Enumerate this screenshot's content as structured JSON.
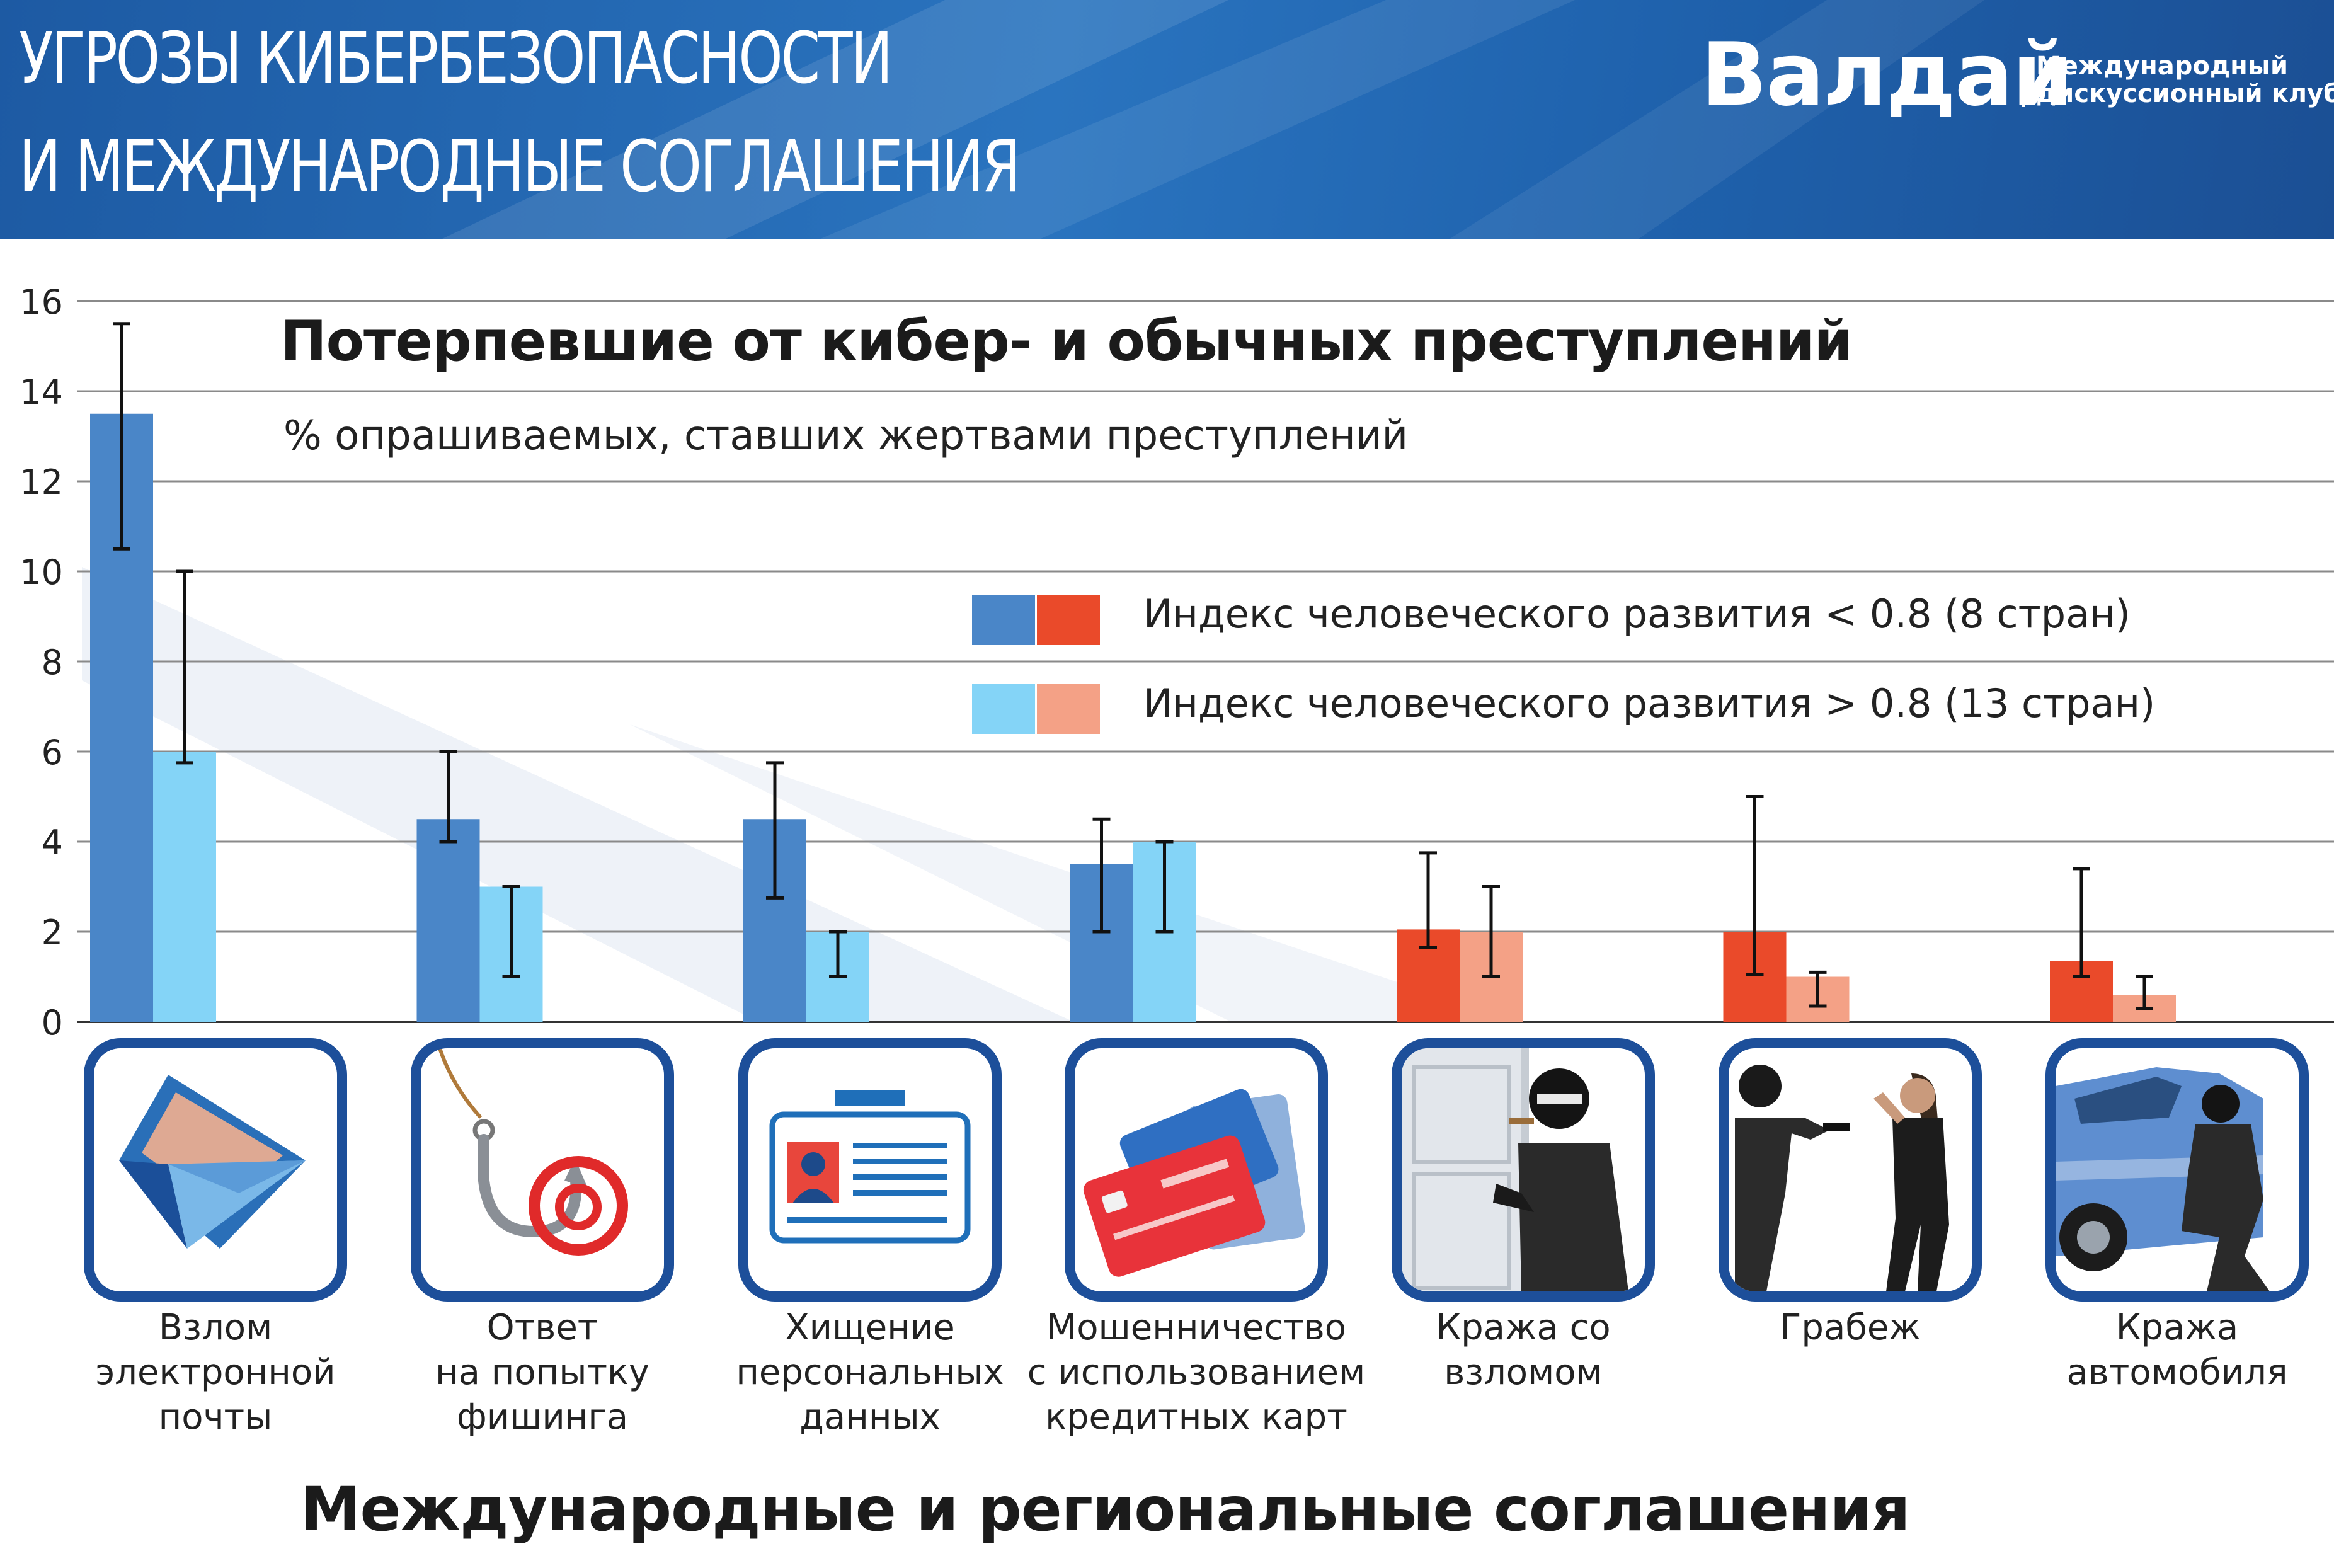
{
  "header": {
    "title_line1": "УГРОЗЫ КИБЕРБЕЗОПАСНОСТИ",
    "title_line2": "И МЕЖДУНАРОДНЫЕ СОГЛАШЕНИЯ",
    "brand_name": "Валдай",
    "brand_sub_line1": "Международный",
    "brand_sub_line2": "дискуссионный клуб"
  },
  "chart_data": {
    "type": "bar",
    "title": "Потерпевшие от кибер- и обычных преступлений",
    "subtitle": "% опрашиваемых, ставших жертвами преступлений",
    "ylim": [
      0,
      16
    ],
    "yticks": [
      0,
      2,
      4,
      6,
      8,
      10,
      12,
      14,
      16
    ],
    "grid": true,
    "legend_position": "top-right",
    "categories": [
      "Взлом\nэлектронной\nпочты",
      "Ответ\nна попытку\nфишинга",
      "Хищение\nперсональных\nданных",
      "Мошенничество\nс использованием\nкредитных карт",
      "Кража со\nвзломом",
      "Грабеж",
      "Кража\nавтомобиля"
    ],
    "category_kind": [
      "cyber",
      "cyber",
      "cyber",
      "cyber",
      "conventional",
      "conventional",
      "conventional"
    ],
    "series": [
      {
        "name": "Индекс человеческого развития < 0.8 (8 стран)",
        "values": [
          13.5,
          4.5,
          4.5,
          3.5,
          2.05,
          2.0,
          1.35
        ],
        "error_low": [
          10.5,
          4.0,
          2.75,
          2.0,
          1.65,
          1.05,
          1.0
        ],
        "error_high": [
          15.5,
          6.0,
          5.75,
          4.5,
          3.75,
          5.0,
          3.4
        ]
      },
      {
        "name": "Индекс человеческого развития > 0.8 (13 стран)",
        "values": [
          6.0,
          3.0,
          2.0,
          4.0,
          2.0,
          1.0,
          0.6
        ],
        "error_low": [
          5.75,
          1.0,
          1.0,
          2.0,
          1.0,
          0.35,
          0.3
        ],
        "error_high": [
          10.0,
          3.0,
          2.0,
          4.0,
          3.0,
          1.1,
          1.0
        ]
      }
    ]
  },
  "colors": {
    "cyber_low_hdi": "#4a86c8",
    "cyber_high_hdi": "#84d4f7",
    "conventional_low_hdi": "#ea4a2a",
    "conventional_high_hdi": "#f4a186",
    "tile_border": "#1d4f9a",
    "header_blue": "#2a6db5"
  },
  "icons": [
    "envelope-icon",
    "phishing-hook-icon",
    "id-card-icon",
    "credit-cards-icon",
    "burglar-door-icon",
    "robbery-icon",
    "car-thief-icon"
  ],
  "footer": {
    "section_title": "Международные и региональные соглашения"
  }
}
